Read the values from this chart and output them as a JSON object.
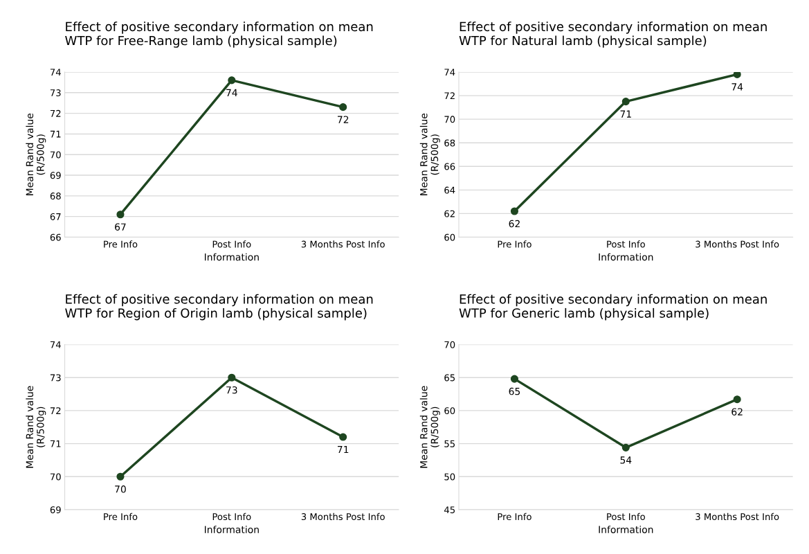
{
  "chart_data": [
    {
      "type": "line",
      "title": "Effect of positive secondary information on mean\nWTP for Free-Range lamb (physical sample)",
      "xlabel": "Information",
      "ylabel": "Mean Rand value\n(R/500g)",
      "categories": [
        "Pre Info",
        "Post Info",
        "3 Months Post Info"
      ],
      "series": [
        {
          "color": "#1e4620",
          "values": [
            67.1,
            73.6,
            72.3
          ],
          "value_labels": [
            "67",
            "74",
            "72"
          ]
        }
      ],
      "ylim": [
        66,
        74
      ],
      "yticks": [
        66,
        67,
        68,
        69,
        70,
        71,
        72,
        73,
        74
      ],
      "grid": "y",
      "marker": "circle",
      "line_style": "solid"
    },
    {
      "type": "line",
      "title": "Effect of positive secondary information on mean\nWTP for Natural lamb (physical sample)",
      "xlabel": "Information",
      "ylabel": "Mean Rand value\n(R/500g)",
      "categories": [
        "Pre Info",
        "Post Info",
        "3 Months Post Info"
      ],
      "series": [
        {
          "color": "#1e4620",
          "values": [
            62.2,
            71.5,
            73.8
          ],
          "value_labels": [
            "62",
            "71",
            "74"
          ]
        }
      ],
      "ylim": [
        60,
        74
      ],
      "yticks": [
        60,
        62,
        64,
        66,
        68,
        70,
        72,
        74
      ],
      "grid": "y",
      "marker": "circle",
      "line_style": "solid"
    },
    {
      "type": "line",
      "title": "Effect of positive secondary information on mean\nWTP for Region of Origin lamb (physical sample)",
      "xlabel": "Information",
      "ylabel": "Mean Rand value\n(R/500g)",
      "categories": [
        "Pre Info",
        "Post Info",
        "3 Months Post Info"
      ],
      "series": [
        {
          "color": "#1e4620",
          "values": [
            70.0,
            73.0,
            71.2
          ],
          "value_labels": [
            "70",
            "73",
            "71"
          ]
        }
      ],
      "ylim": [
        69,
        74
      ],
      "yticks": [
        69,
        70,
        71,
        72,
        73,
        74
      ],
      "grid": "y",
      "marker": "circle",
      "line_style": "solid"
    },
    {
      "type": "line",
      "title": "Effect of positive secondary information on mean\nWTP for Generic lamb (physical sample)",
      "xlabel": "Information",
      "ylabel": "Mean Rand value\n(R/500g)",
      "categories": [
        "Pre Info",
        "Post Info",
        "3 Months Post Info"
      ],
      "series": [
        {
          "color": "#1e4620",
          "values": [
            64.8,
            54.4,
            61.7
          ],
          "value_labels": [
            "65",
            "54",
            "62"
          ]
        }
      ],
      "ylim": [
        45,
        70
      ],
      "yticks": [
        45,
        50,
        55,
        60,
        65,
        70
      ],
      "grid": "y",
      "marker": "circle",
      "line_style": "solid"
    }
  ]
}
